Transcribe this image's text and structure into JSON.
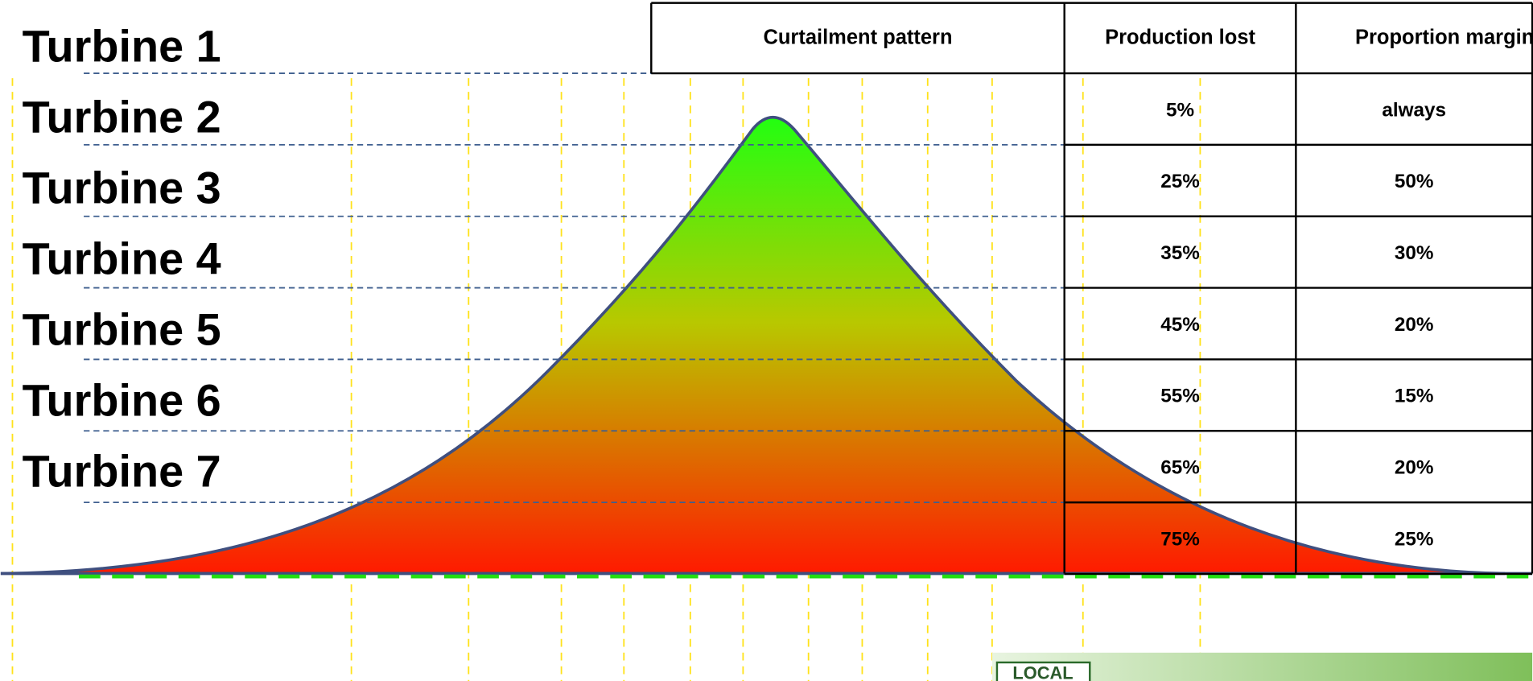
{
  "turbines": [
    "Turbine 1",
    "Turbine 2",
    "Turbine 3",
    "Turbine 4",
    "Turbine 5",
    "Turbine 6",
    "Turbine 7"
  ],
  "table": {
    "headers": [
      "Curtailment pattern",
      "Production lost",
      "Proportion marginal"
    ],
    "rows": [
      [
        "5%",
        "always"
      ],
      [
        "25%",
        "50%"
      ],
      [
        "35%",
        "30%"
      ],
      [
        "45%",
        "20%"
      ],
      [
        "55%",
        "15%"
      ],
      [
        "65%",
        "20%"
      ],
      [
        "75%",
        "25%"
      ]
    ]
  },
  "logo": {
    "text": "LOCAL"
  }
}
